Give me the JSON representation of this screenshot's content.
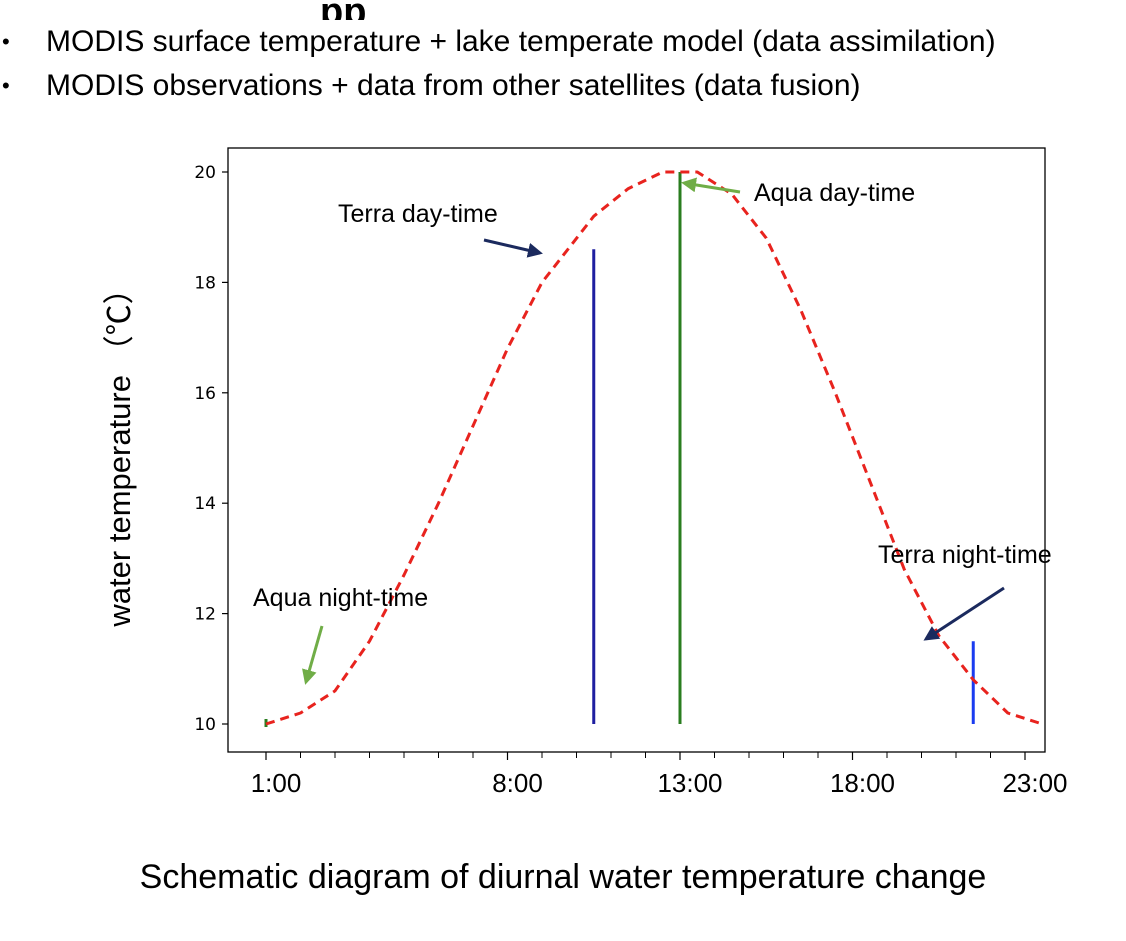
{
  "slide": {
    "heading_fragment": "pp",
    "bullets": [
      "MODIS surface temperature + lake temperate model (data assimilation)",
      "MODIS observations + data from other satellites (data fusion)"
    ],
    "bullet_marker": "•",
    "caption": "Schematic diagram of diurnal water temperature change"
  },
  "chart_data": {
    "type": "line",
    "title": "",
    "xlabel": "",
    "ylabel": "water temperature （℃）",
    "x_tick_labels": [
      {
        "hour": 1,
        "label": "1:00"
      },
      {
        "hour": 8,
        "label": "8:00"
      },
      {
        "hour": 13,
        "label": "13:00"
      },
      {
        "hour": 18,
        "label": "18:00"
      },
      {
        "hour": 23,
        "label": "23:00"
      }
    ],
    "x_minor_tick_hours": [
      1,
      2,
      3,
      4,
      5,
      6,
      7,
      8,
      9,
      10,
      11,
      12,
      13,
      14,
      15,
      16,
      17,
      18,
      19,
      20,
      21,
      22,
      23
    ],
    "xlim": [
      0,
      24
    ],
    "ylim": [
      9.5,
      20.5
    ],
    "yticks": [
      10,
      12,
      14,
      16,
      18,
      20
    ],
    "grid": false,
    "series": [
      {
        "color": "#e8231e",
        "style": "dashed",
        "x": [
          1,
          2,
          3,
          4,
          5,
          6,
          7,
          8,
          9,
          10.5,
          11.5,
          12.5,
          13,
          13.5,
          14.5,
          15.5,
          16.5,
          17.5,
          18.5,
          19.5,
          20.5,
          21.5,
          22.5,
          23.5
        ],
        "y": [
          10,
          10.2,
          10.6,
          11.5,
          12.7,
          14.0,
          15.4,
          16.8,
          18.0,
          19.2,
          19.7,
          20.0,
          20.0,
          20.0,
          19.6,
          18.8,
          17.5,
          16.0,
          14.4,
          12.8,
          11.6,
          10.8,
          10.2,
          10.0
        ]
      }
    ],
    "vertical_markers": [
      {
        "label": "Terra day-time",
        "x": 10.5,
        "y": 18.6,
        "color": "#1f1fa0"
      },
      {
        "label": "Aqua day-time",
        "x": 13.0,
        "y": 20.0,
        "color": "#2a7d1f"
      },
      {
        "label": "Terra night-time",
        "x": 21.5,
        "y": 11.5,
        "color": "#1a3cf0"
      }
    ],
    "annotations": [
      {
        "text": "Terra day-time",
        "arrow_color": "#1b2a5e"
      },
      {
        "text": "Aqua day-time",
        "arrow_color": "#70ad47"
      },
      {
        "text": "Terra night-time",
        "arrow_color": "#1b2a5e"
      },
      {
        "text": "Aqua night-time",
        "arrow_color": "#70ad47"
      }
    ]
  }
}
